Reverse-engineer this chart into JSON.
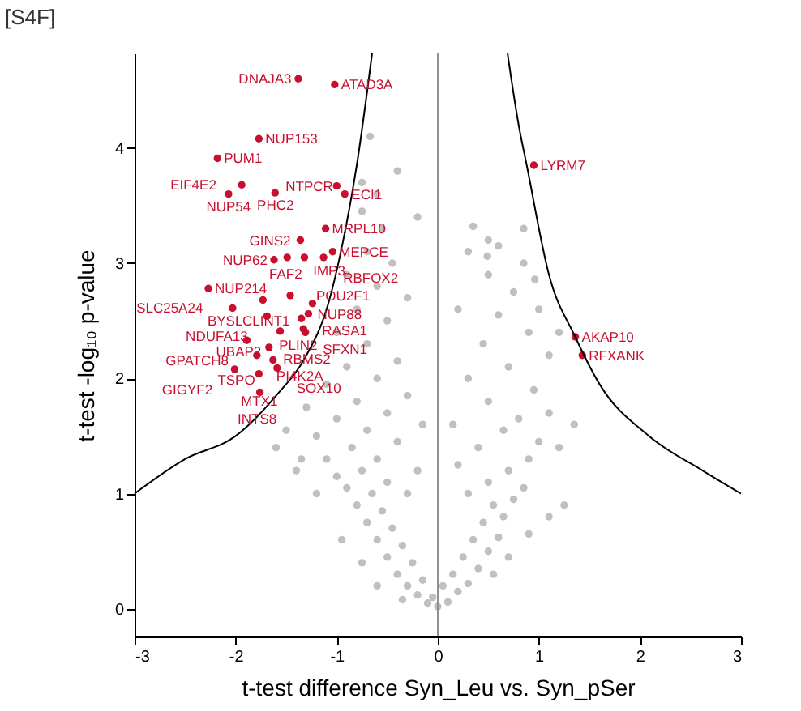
{
  "chart_data": {
    "type": "scatter",
    "xlabel": "t-test difference Syn_Leu vs. Syn_pSer",
    "ylabel": "t-test -log₁₀ p-value",
    "xlim": [
      -3,
      3
    ],
    "ylim": [
      -0.24,
      4.82
    ],
    "xticks": [
      -3,
      -2,
      -1,
      0,
      1,
      2,
      3
    ],
    "yticks": [
      0,
      1,
      2,
      3,
      4
    ],
    "grid": false,
    "marker": "circle",
    "ref_lines": [
      {
        "axis": "x",
        "value": 0,
        "color": "#909090"
      }
    ],
    "annotations": [
      "[S4F]",
      {
        "text": "DNAJA3",
        "x": -1.38,
        "y": 4.6
      },
      {
        "text": "ATAD3A",
        "x": -1.02,
        "y": 4.55
      },
      {
        "text": "NUP153",
        "x": -1.77,
        "y": 4.08
      },
      {
        "text": "PUM1",
        "x": -2.18,
        "y": 3.91
      },
      {
        "text": "EIF4E2",
        "x": -1.94,
        "y": 3.68
      },
      {
        "text": "NUP54",
        "x": -2.07,
        "y": 3.6
      },
      {
        "text": "PHC2",
        "x": -1.61,
        "y": 3.61
      },
      {
        "text": "NTPCR",
        "x": -1.0,
        "y": 3.67
      },
      {
        "text": "ECI1",
        "x": -0.92,
        "y": 3.6
      },
      {
        "text": "MRPL10",
        "x": -1.11,
        "y": 3.3
      },
      {
        "text": "GINS2",
        "x": -1.36,
        "y": 3.2
      },
      {
        "text": "FAF2",
        "x": -1.49,
        "y": 3.05
      },
      {
        "text": "IMP3",
        "x": -1.32,
        "y": 3.05
      },
      {
        "text": "MEPCE",
        "x": -1.04,
        "y": 3.1
      },
      {
        "text": "RBFOX2",
        "x": -1.13,
        "y": 3.05
      },
      {
        "text": "NUP62",
        "x": -1.62,
        "y": 3.03
      },
      {
        "text": "NUP214",
        "x": -2.27,
        "y": 2.78
      },
      {
        "text": "BYSL",
        "x": -1.73,
        "y": 2.68
      },
      {
        "text": "POU2F1",
        "x": -1.46,
        "y": 2.72
      },
      {
        "text": "SLC25A24",
        "x": -2.03,
        "y": 2.61
      },
      {
        "text": "NUP88",
        "x": -1.24,
        "y": 2.65
      },
      {
        "text": "RASA1",
        "x": -1.28,
        "y": 2.56
      },
      {
        "text": "NDUFA13",
        "x": -1.69,
        "y": 2.54
      },
      {
        "text": "PLIN2",
        "x": -1.35,
        "y": 2.52
      },
      {
        "text": "SFXN1",
        "x": -1.33,
        "y": 2.43
      },
      {
        "text": "GPATCH8",
        "x": -1.89,
        "y": 2.33
      },
      {
        "text": "UBAP2",
        "x": -1.56,
        "y": 2.41
      },
      {
        "text": "RBMS2",
        "x": -1.31,
        "y": 2.4
      },
      {
        "text": "CLINT1",
        "x": -1.67,
        "y": 2.27
      },
      {
        "text": "PI4K2A",
        "x": -1.79,
        "y": 2.2
      },
      {
        "text": "TSPO",
        "x": -1.63,
        "y": 2.16
      },
      {
        "text": "GIGYF2",
        "x": -2.01,
        "y": 2.08
      },
      {
        "text": "SOX10",
        "x": -1.59,
        "y": 2.09
      },
      {
        "text": "MTX1",
        "x": -1.77,
        "y": 2.04
      },
      {
        "text": "INTS8",
        "x": -1.76,
        "y": 1.88
      },
      {
        "text": "LYRM7",
        "x": 0.95,
        "y": 3.85
      },
      {
        "text": "AKAP10",
        "x": 1.36,
        "y": 2.36
      },
      {
        "text": "RFXANK",
        "x": 1.43,
        "y": 2.2
      }
    ],
    "series": [
      {
        "color": "#c0c0c0",
        "x": [
          0,
          -0.1,
          0.1,
          -0.2,
          0.2,
          -0.3,
          0.3,
          -0.05,
          0.05,
          -0.15,
          0.15,
          -0.4,
          0.4,
          -0.25,
          0.25,
          -0.5,
          0.5,
          -0.35,
          0.35,
          -0.6,
          0.6,
          -0.45,
          0.45,
          -0.7,
          0.65,
          -0.55,
          0.55,
          -0.8,
          0.75,
          -0.65,
          -0.3,
          0.3,
          -0.9,
          0.85,
          -0.5,
          0.5,
          -1.0,
          -0.75,
          0.7,
          -0.2,
          0.2,
          -1.1,
          -0.6,
          0.9,
          -0.85,
          0.4,
          -0.4,
          1.0,
          -1.2,
          -0.7,
          0.65,
          -0.15,
          0.15,
          -1.0,
          0.8,
          -0.5,
          1.1,
          -1.3,
          -0.8,
          0.5,
          -0.3,
          0.95,
          -1.1,
          -0.6,
          0.3,
          -1.5,
          -1.35,
          1.2,
          1.35,
          -0.9,
          0.7,
          -0.4,
          1.1,
          -0.7,
          0.45,
          -1.0,
          0.9,
          -0.5,
          0.6,
          -0.8,
          0.2,
          -0.3,
          0.75,
          -0.6,
          0.5,
          -0.9,
          -0.45,
          0.85,
          -0.7,
          0.6,
          -0.55,
          0.85,
          -0.75,
          -0.6,
          -0.75,
          -0.4,
          -0.67,
          0.5,
          1.0,
          1.2,
          0.3,
          -0.2,
          -1.2,
          -1.4,
          -1.6,
          1.25,
          1.1,
          -0.95,
          0.9,
          -0.75,
          0.7,
          -0.6,
          0.55,
          -0.35,
          0.35,
          0.49,
          0.96
        ],
        "values": [
          0.02,
          0.05,
          0.06,
          0.12,
          0.15,
          0.2,
          0.22,
          0.1,
          0.2,
          0.25,
          0.3,
          0.3,
          0.35,
          0.4,
          0.45,
          0.45,
          0.5,
          0.55,
          0.6,
          0.6,
          0.62,
          0.7,
          0.75,
          0.75,
          0.8,
          0.85,
          0.9,
          0.9,
          0.95,
          1.0,
          1.0,
          1.0,
          1.05,
          1.05,
          1.1,
          1.1,
          1.15,
          1.2,
          1.2,
          1.2,
          1.25,
          1.3,
          1.3,
          1.3,
          1.4,
          1.4,
          1.45,
          1.45,
          1.5,
          1.55,
          1.55,
          1.6,
          1.6,
          1.65,
          1.65,
          1.7,
          1.7,
          1.75,
          1.8,
          1.8,
          1.85,
          1.9,
          1.95,
          2.0,
          2.0,
          1.55,
          1.3,
          1.4,
          1.6,
          2.1,
          2.1,
          2.15,
          2.2,
          2.3,
          2.3,
          2.4,
          2.4,
          2.5,
          2.55,
          2.6,
          2.6,
          2.7,
          2.75,
          2.8,
          2.9,
          2.9,
          3.0,
          3.0,
          3.1,
          3.15,
          3.3,
          3.3,
          3.45,
          3.6,
          3.7,
          3.8,
          4.1,
          3.2,
          2.6,
          2.4,
          3.1,
          3.4,
          1.0,
          1.2,
          1.4,
          0.9,
          0.8,
          0.6,
          0.65,
          0.4,
          0.45,
          0.2,
          0.3,
          0.08,
          3.32,
          3.06,
          2.86
        ]
      },
      {
        "color": "#c8102e",
        "x": [
          -1.38,
          -1.02,
          -1.77,
          -2.18,
          -1.94,
          -2.07,
          -1.61,
          -1.0,
          -0.92,
          -1.11,
          -1.36,
          -1.49,
          -1.32,
          -1.04,
          -1.13,
          -1.62,
          -2.27,
          -1.73,
          -1.46,
          -2.03,
          -1.24,
          -1.28,
          -1.69,
          -1.35,
          -1.33,
          -1.89,
          -1.56,
          -1.31,
          -1.67,
          -1.79,
          -1.63,
          -2.01,
          -1.59,
          -1.77,
          -1.76,
          0.95,
          1.36,
          1.43
        ],
        "values": [
          4.6,
          4.55,
          4.08,
          3.91,
          3.68,
          3.6,
          3.61,
          3.67,
          3.6,
          3.3,
          3.2,
          3.05,
          3.05,
          3.1,
          3.05,
          3.03,
          2.78,
          2.68,
          2.72,
          2.61,
          2.65,
          2.56,
          2.54,
          2.52,
          2.43,
          2.33,
          2.41,
          2.4,
          2.27,
          2.2,
          2.16,
          2.08,
          2.09,
          2.04,
          1.88,
          3.85,
          2.36,
          2.2
        ]
      },
      {
        "type": "line",
        "marker": "none",
        "color": "#000000",
        "x": [
          -3,
          -2.5,
          -2.0,
          -1.6,
          -1.3,
          -1.1,
          -0.94,
          -0.8,
          -0.65
        ],
        "values": [
          1.0,
          1.3,
          1.5,
          1.85,
          2.2,
          2.6,
          3.18,
          3.86,
          4.82
        ]
      },
      {
        "type": "line",
        "marker": "none",
        "color": "#000000",
        "x": [
          0.69,
          0.8,
          0.88,
          1.1,
          1.36,
          1.6,
          2.09,
          2.62,
          3
        ],
        "values": [
          4.82,
          4.2,
          3.85,
          2.9,
          2.36,
          1.95,
          1.5,
          1.2,
          1.0
        ]
      }
    ]
  }
}
